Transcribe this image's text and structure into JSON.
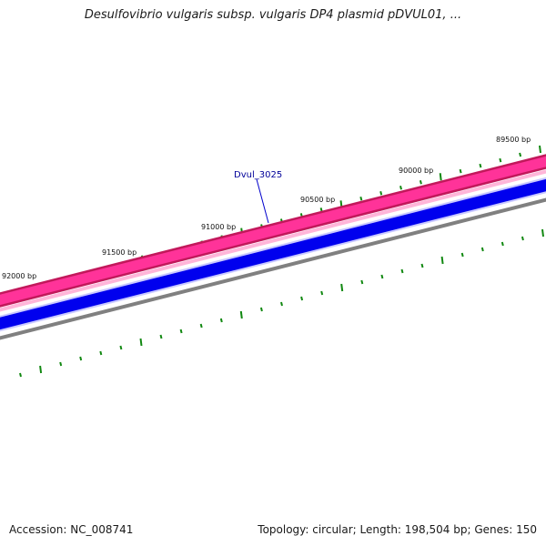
{
  "title": "Desulfovibrio vulgaris subsp. vulgaris DP4 plasmid pDVUL01, ...",
  "footer": {
    "accession": "Accession: NC_008741",
    "summary": "Topology: circular; Length: 198,504 bp; Genes: 150"
  },
  "colors": {
    "cds_dark": "#c2185b",
    "cds": "#ff3399",
    "cds_light": "#ffb6d9",
    "gene": "#0000ee",
    "gene_light": "#c9c9ff",
    "backbone": "#808080",
    "tick": "#118811",
    "label_line": "#0000cc"
  },
  "scale": {
    "ticks": [
      {
        "label": "89500 bp"
      },
      {
        "label": "90000 bp"
      },
      {
        "label": "90500 bp"
      },
      {
        "label": "91000 bp"
      },
      {
        "label": "91500 bp"
      },
      {
        "label": "92000 bp"
      }
    ]
  },
  "features": [
    {
      "label": "Dvul_3025"
    }
  ]
}
